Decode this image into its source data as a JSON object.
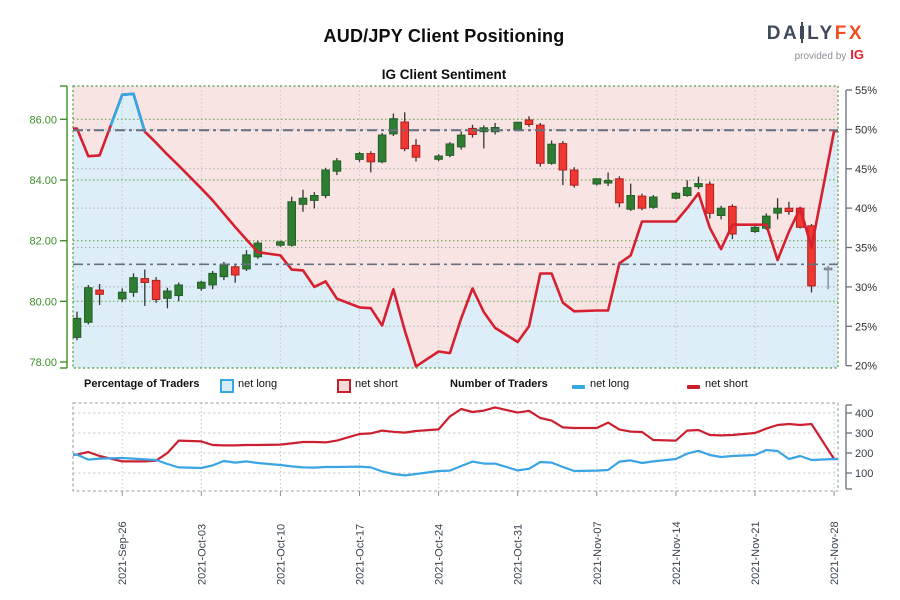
{
  "header": {
    "title": "AUD/JPY Client Positioning",
    "subtitle": "IG Client Sentiment",
    "logo": {
      "daily_left": "DA",
      "daily_right": "LY",
      "fx": "FX",
      "provided_by": "provided by",
      "ig": "IG"
    }
  },
  "legend": {
    "pct_title": "Percentage of Traders",
    "count_title": "Number of Traders",
    "net_long": "net long",
    "net_short": "net short"
  },
  "colors": {
    "candle_up": "#2F7D33",
    "candle_up_edge": "#245F27",
    "candle_down": "#EE3831",
    "candle_down_edge": "#B02020",
    "candle_incomplete": "#9CA3AA",
    "candle_incomplete_edge": "#7D848B",
    "wick": "#353535",
    "pct_line_short": "#D6202F",
    "pct_line_long": "#2EA9E8",
    "fill_above_line": "#F9E4E4",
    "fill_below_line": "#DEEEF8",
    "count_line_short": "#CB2030",
    "count_line_long": "#3AA4E4",
    "price_axis_green": "#3E8E28",
    "grid_green": "#5AA13C",
    "grid_gray": "#A8AEB6",
    "grid_vertical": "#C2C7CD",
    "reference_dashdot": "#667080",
    "border_main": "#4D9B3F",
    "border_bottom": "#999FA6",
    "label_dark": "#2E2E2E",
    "date_label": "#39424E"
  },
  "chart_data": [
    {
      "type": "candlestick+line",
      "title": "IG Client Sentiment",
      "price_axis": {
        "ticks": [
          "86.00",
          "84.00",
          "82.00",
          "80.00",
          "78.00"
        ],
        "min": 78,
        "max": 86,
        "side": "left"
      },
      "pct_axis": {
        "ticks": [
          "55%",
          "50%",
          "45%",
          "40%",
          "35%",
          "30%",
          "25%",
          "20%"
        ],
        "min": 20,
        "max": 55,
        "side": "right"
      },
      "x_ticks": [
        "2021-Sep-26",
        "2021-Oct-03",
        "2021-Oct-10",
        "2021-Oct-17",
        "2021-Oct-24",
        "2021-Oct-31",
        "2021-Nov-07",
        "2021-Nov-14",
        "2021-Nov-21",
        "2021-Nov-28"
      ],
      "grid_prices": [
        86,
        84,
        82,
        80
      ],
      "grid_pcts": [
        50,
        45,
        40,
        35,
        30,
        25
      ],
      "reference_lines": {
        "pct": 49.9,
        "price": 81.22
      },
      "dates": [
        "2021-09-22",
        "2021-09-23",
        "2021-09-24",
        "2021-09-26",
        "2021-09-27",
        "2021-09-28",
        "2021-09-29",
        "2021-09-30",
        "2021-10-01",
        "2021-10-03",
        "2021-10-04",
        "2021-10-05",
        "2021-10-06",
        "2021-10-07",
        "2021-10-08",
        "2021-10-10",
        "2021-10-11",
        "2021-10-12",
        "2021-10-13",
        "2021-10-14",
        "2021-10-15",
        "2021-10-17",
        "2021-10-18",
        "2021-10-19",
        "2021-10-20",
        "2021-10-21",
        "2021-10-22",
        "2021-10-24",
        "2021-10-25",
        "2021-10-26",
        "2021-10-27",
        "2021-10-28",
        "2021-10-29",
        "2021-10-31",
        "2021-11-01",
        "2021-11-02",
        "2021-11-03",
        "2021-11-04",
        "2021-11-05",
        "2021-11-07",
        "2021-11-08",
        "2021-11-09",
        "2021-11-10",
        "2021-11-11",
        "2021-11-12",
        "2021-11-14",
        "2021-11-15",
        "2021-11-16",
        "2021-11-17",
        "2021-11-18",
        "2021-11-19",
        "2021-11-21",
        "2021-11-22",
        "2021-11-23",
        "2021-11-24",
        "2021-11-25",
        "2021-11-26",
        "2021-11-28"
      ],
      "candles": {
        "open": [
          78.81,
          79.31,
          80.37,
          80.08,
          80.3,
          80.75,
          80.69,
          80.1,
          80.19,
          80.43,
          80.54,
          80.81,
          81.14,
          81.07,
          81.47,
          81.85,
          81.85,
          83.2,
          83.33,
          83.49,
          84.29,
          84.68,
          84.87,
          84.6,
          85.52,
          85.91,
          85.14,
          84.68,
          84.81,
          85.09,
          85.7,
          85.59,
          85.59,
          85.65,
          85.98,
          85.81,
          84.55,
          85.2,
          84.33,
          83.87,
          83.9,
          84.04,
          83.04,
          83.47,
          83.1,
          83.4,
          83.49,
          83.78,
          83.86,
          82.83,
          83.13,
          82.3,
          82.41,
          82.91,
          83.07,
          83.07,
          82.49,
          81.1
        ],
        "high": [
          79.66,
          80.54,
          80.57,
          80.43,
          80.92,
          81.05,
          80.8,
          80.45,
          80.62,
          80.68,
          81.0,
          81.3,
          81.22,
          81.69,
          82.0,
          82.0,
          83.45,
          83.68,
          83.6,
          84.4,
          84.72,
          84.92,
          84.95,
          85.55,
          86.19,
          86.23,
          85.35,
          84.85,
          85.25,
          85.6,
          85.82,
          85.8,
          85.88,
          85.92,
          86.1,
          85.88,
          85.3,
          85.28,
          84.42,
          84.06,
          84.25,
          84.12,
          83.88,
          83.55,
          83.5,
          83.6,
          83.99,
          84.11,
          83.95,
          83.15,
          83.2,
          82.48,
          82.9,
          83.4,
          83.28,
          83.12,
          82.55,
          81.17
        ],
        "low": [
          78.72,
          79.24,
          79.88,
          79.98,
          80.15,
          79.85,
          79.95,
          79.77,
          80.0,
          80.35,
          80.4,
          80.7,
          80.61,
          81.0,
          81.4,
          81.8,
          81.8,
          82.95,
          83.06,
          83.4,
          84.16,
          84.6,
          84.25,
          84.55,
          85.45,
          84.95,
          84.61,
          84.62,
          84.75,
          85.0,
          85.4,
          85.04,
          85.5,
          85.6,
          85.75,
          84.44,
          84.5,
          83.83,
          83.75,
          83.82,
          83.8,
          83.1,
          82.98,
          83.0,
          83.05,
          83.36,
          83.45,
          83.7,
          82.73,
          82.7,
          82.05,
          82.25,
          82.35,
          82.7,
          82.85,
          82.4,
          80.29,
          80.4
        ],
        "close": [
          79.44,
          80.45,
          80.23,
          80.3,
          80.78,
          80.62,
          80.06,
          80.34,
          80.54,
          80.63,
          80.92,
          81.2,
          80.87,
          81.53,
          81.92,
          81.96,
          83.28,
          83.4,
          83.49,
          84.33,
          84.63,
          84.87,
          84.6,
          85.48,
          86.02,
          85.03,
          84.75,
          84.79,
          85.19,
          85.48,
          85.5,
          85.72,
          85.73,
          85.9,
          85.83,
          84.55,
          85.18,
          84.33,
          83.83,
          84.04,
          83.98,
          83.25,
          83.49,
          83.07,
          83.44,
          83.56,
          83.75,
          83.88,
          82.9,
          83.07,
          82.22,
          82.44,
          82.81,
          83.07,
          82.96,
          82.44,
          80.51,
          81.05
        ]
      },
      "incomplete_last_candle": true,
      "net_short_pct": [
        50.1,
        46.6,
        46.7,
        54.4,
        54.5,
        49.7,
        48.3,
        46.8,
        45.4,
        42.5,
        41.0,
        39.3,
        37.6,
        36.0,
        34.4,
        34.0,
        32.2,
        32.1,
        30.0,
        30.7,
        28.5,
        27.4,
        27.3,
        25.1,
        29.7,
        24.5,
        19.9,
        21.8,
        21.6,
        26.0,
        29.8,
        26.8,
        24.8,
        23.0,
        25.0,
        31.7,
        31.7,
        28.0,
        26.9,
        27.0,
        27.0,
        33.0,
        34.0,
        38.3,
        38.3,
        38.3,
        40.0,
        41.9,
        37.5,
        34.8,
        37.9,
        37.9,
        37.9,
        33.4,
        37.0,
        40.0,
        35.0,
        49.8
      ],
      "net_long_pct_visible_segment": {
        "dates": [
          "2021-09-25",
          "2021-09-26",
          "2021-09-27",
          "2021-09-28"
        ],
        "values": [
          50.5,
          54.4,
          54.5,
          49.7
        ]
      }
    },
    {
      "type": "line",
      "count_axis": {
        "ticks": [
          "400",
          "300",
          "200",
          "100"
        ],
        "side": "right"
      },
      "dates": [
        "2021-09-22",
        "2021-09-23",
        "2021-09-24",
        "2021-09-26",
        "2021-09-27",
        "2021-09-28",
        "2021-09-29",
        "2021-09-30",
        "2021-10-01",
        "2021-10-03",
        "2021-10-04",
        "2021-10-05",
        "2021-10-06",
        "2021-10-07",
        "2021-10-08",
        "2021-10-10",
        "2021-10-11",
        "2021-10-12",
        "2021-10-13",
        "2021-10-14",
        "2021-10-15",
        "2021-10-17",
        "2021-10-18",
        "2021-10-19",
        "2021-10-20",
        "2021-10-21",
        "2021-10-22",
        "2021-10-24",
        "2021-10-25",
        "2021-10-26",
        "2021-10-27",
        "2021-10-28",
        "2021-10-29",
        "2021-10-31",
        "2021-11-01",
        "2021-11-02",
        "2021-11-03",
        "2021-11-04",
        "2021-11-05",
        "2021-11-07",
        "2021-11-08",
        "2021-11-09",
        "2021-11-10",
        "2021-11-11",
        "2021-11-12",
        "2021-11-14",
        "2021-11-15",
        "2021-11-16",
        "2021-11-17",
        "2021-11-18",
        "2021-11-19",
        "2021-11-21",
        "2021-11-22",
        "2021-11-23",
        "2021-11-24",
        "2021-11-25",
        "2021-11-26",
        "2021-11-28"
      ],
      "series": [
        {
          "name": "net long traders",
          "values": [
            192,
            167,
            172,
            175,
            172,
            168,
            165,
            145,
            128,
            125,
            138,
            160,
            152,
            158,
            150,
            140,
            133,
            128,
            127,
            130,
            130,
            132,
            128,
            108,
            95,
            88,
            95,
            110,
            112,
            135,
            157,
            147,
            147,
            113,
            121,
            155,
            152,
            130,
            110,
            112,
            115,
            157,
            163,
            150,
            158,
            170,
            197,
            211,
            190,
            180,
            185,
            190,
            215,
            210,
            170,
            185,
            165,
            170
          ]
        },
        {
          "name": "net short traders",
          "values": [
            192,
            205,
            185,
            158,
            158,
            158,
            162,
            200,
            262,
            258,
            240,
            238,
            238,
            240,
            240,
            242,
            248,
            255,
            255,
            253,
            262,
            295,
            298,
            312,
            306,
            302,
            310,
            318,
            383,
            420,
            405,
            412,
            428,
            402,
            411,
            375,
            362,
            328,
            325,
            325,
            352,
            317,
            307,
            305,
            265,
            262,
            312,
            315,
            290,
            288,
            290,
            300,
            322,
            340,
            345,
            340,
            345,
            170
          ]
        }
      ]
    }
  ]
}
